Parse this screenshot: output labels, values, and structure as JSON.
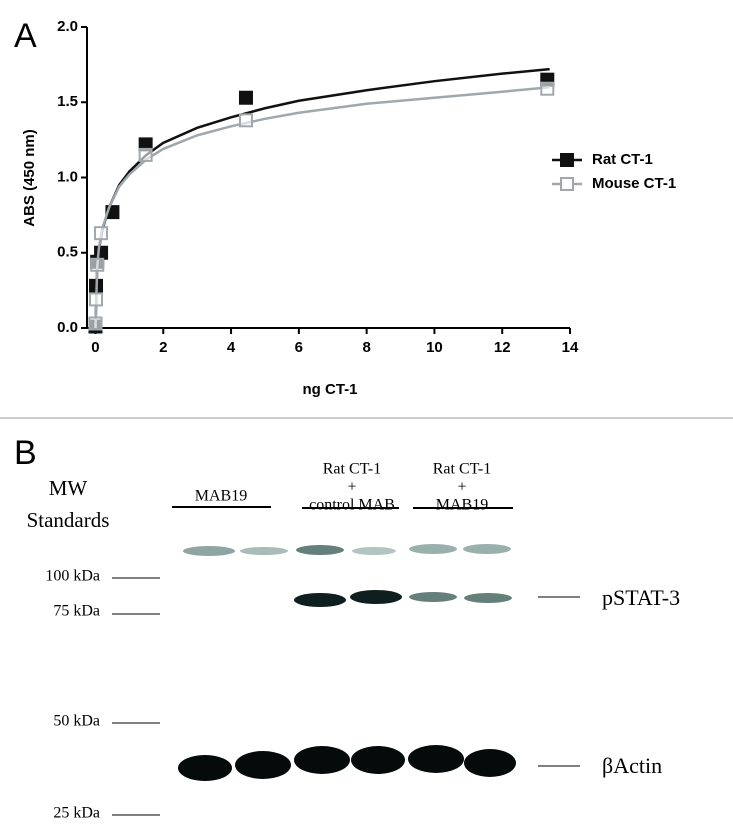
{
  "panel_a": {
    "label": "A"
  },
  "chart_data": {
    "type": "scatter",
    "x_label": "ng CT-1",
    "y_label": "ABS (450 nm)",
    "xlim": [
      -0.25,
      14
    ],
    "xticks": [
      0,
      2,
      4,
      6,
      8,
      10,
      12,
      14
    ],
    "ylim": [
      0,
      2
    ],
    "yticks": [
      {
        "value": 0,
        "label": "0.0"
      },
      0.5,
      {
        "value": 1,
        "label": "1.0"
      },
      1.5,
      {
        "value": 2,
        "label": "2.0"
      }
    ],
    "legend": "right",
    "series": [
      {
        "name": "Rat CT-1",
        "color": "#111111",
        "filled": true,
        "x": [
          0,
          0.0165,
          0.05,
          0.165,
          0.5,
          1.48,
          4.44,
          13.33
        ],
        "values": [
          0.01,
          0.28,
          0.44,
          0.5,
          0.77,
          1.22,
          1.53,
          1.65
        ],
        "fit": {
          "x": [
            0,
            0.05,
            0.1,
            0.2,
            0.4,
            0.7,
            1,
            1.5,
            2,
            3,
            4,
            5,
            6,
            8,
            10,
            12,
            13.4
          ],
          "values": [
            0,
            0.4,
            0.52,
            0.65,
            0.8,
            0.95,
            1.04,
            1.15,
            1.23,
            1.33,
            1.4,
            1.46,
            1.51,
            1.58,
            1.64,
            1.69,
            1.72
          ]
        }
      },
      {
        "name": "Mouse CT-1",
        "color": "#a0a8ac",
        "filled": false,
        "x": [
          0,
          0.0165,
          0.05,
          0.165,
          1.48,
          4.44,
          13.33
        ],
        "values": [
          0.03,
          0.19,
          0.42,
          0.63,
          1.15,
          1.38,
          1.59
        ],
        "fit": {
          "x": [
            0,
            0.05,
            0.1,
            0.2,
            0.4,
            0.7,
            1,
            1.5,
            2,
            3,
            4,
            5,
            6,
            8,
            10,
            12,
            13.4
          ],
          "values": [
            0,
            0.4,
            0.53,
            0.66,
            0.8,
            0.94,
            1.02,
            1.12,
            1.19,
            1.28,
            1.34,
            1.39,
            1.43,
            1.49,
            1.53,
            1.57,
            1.6
          ]
        }
      }
    ]
  },
  "panel_b": {
    "label": "B",
    "mw_title": [
      "MW",
      "Standards"
    ],
    "lanes": [
      {
        "lines": [
          "MAB19"
        ]
      },
      {
        "lines": [
          "Rat CT-1",
          "+",
          "control MAB"
        ]
      },
      {
        "lines": [
          "Rat CT-1",
          "+",
          "MAB19"
        ]
      }
    ],
    "mw_markers": [
      "100 kDa",
      "75 kDa",
      "50 kDa",
      "25 kDa"
    ],
    "band_labels": [
      "pSTAT-3",
      "βActin"
    ]
  }
}
